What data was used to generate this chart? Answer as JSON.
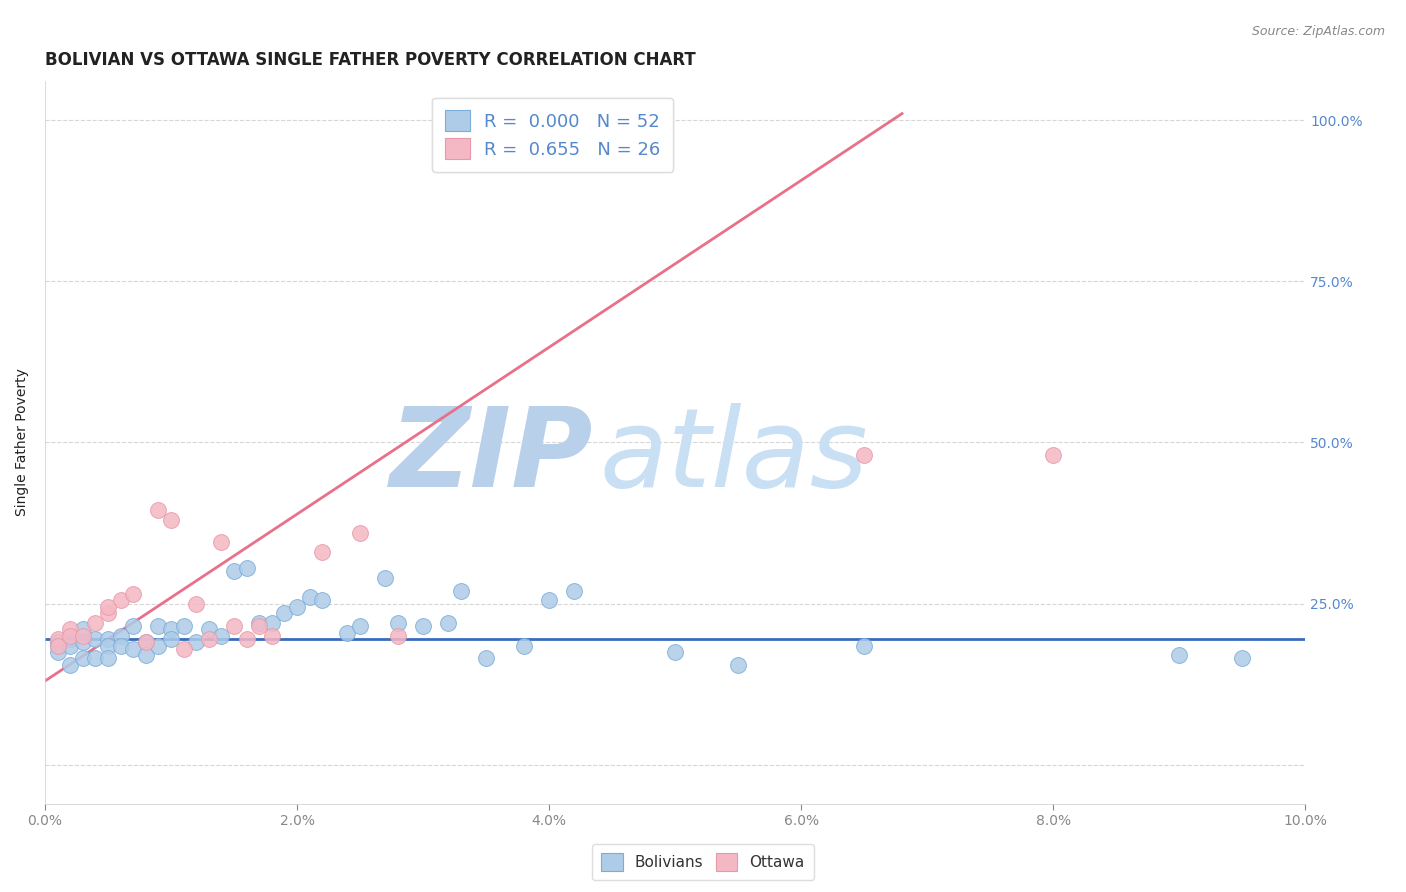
{
  "title": "BOLIVIAN VS OTTAWA SINGLE FATHER POVERTY CORRELATION CHART",
  "source": "Source: ZipAtlas.com",
  "ylabel": "Single Father Poverty",
  "legend_blue_label": "R =  0.000   N = 52",
  "legend_pink_label": "R =  0.655   N = 26",
  "bolivians_color": "#aecce8",
  "ottawa_color": "#f4b8c4",
  "blue_line_color": "#3a6bbf",
  "pink_line_color": "#e8708a",
  "blue_marker_edge": "#7aadd8",
  "pink_marker_edge": "#e898a8",
  "watermark_zip_color": "#c8dff0",
  "watermark_atlas_color": "#b8d4ee",
  "title_color": "#222222",
  "axis_label_color": "#222222",
  "tick_color": "#5588cc",
  "grid_color": "#cccccc",
  "x_lim": [
    0.0,
    0.1
  ],
  "y_lim": [
    -0.06,
    1.06
  ],
  "blue_line_y": 0.195,
  "pink_line_x0": 0.0,
  "pink_line_y0": 0.13,
  "pink_line_x1": 0.068,
  "pink_line_y1": 1.01,
  "bolivians_x": [
    0.001,
    0.001,
    0.001,
    0.002,
    0.002,
    0.002,
    0.003,
    0.003,
    0.003,
    0.004,
    0.004,
    0.005,
    0.005,
    0.005,
    0.006,
    0.006,
    0.007,
    0.007,
    0.008,
    0.008,
    0.009,
    0.009,
    0.01,
    0.01,
    0.011,
    0.012,
    0.013,
    0.014,
    0.015,
    0.016,
    0.017,
    0.018,
    0.019,
    0.02,
    0.021,
    0.022,
    0.024,
    0.025,
    0.027,
    0.028,
    0.03,
    0.032,
    0.033,
    0.035,
    0.038,
    0.04,
    0.042,
    0.05,
    0.055,
    0.065,
    0.09,
    0.095
  ],
  "bolivians_y": [
    0.19,
    0.185,
    0.175,
    0.195,
    0.185,
    0.155,
    0.21,
    0.19,
    0.165,
    0.195,
    0.165,
    0.195,
    0.185,
    0.165,
    0.2,
    0.185,
    0.215,
    0.18,
    0.19,
    0.17,
    0.215,
    0.185,
    0.21,
    0.195,
    0.215,
    0.19,
    0.21,
    0.2,
    0.3,
    0.305,
    0.22,
    0.22,
    0.235,
    0.245,
    0.26,
    0.255,
    0.205,
    0.215,
    0.29,
    0.22,
    0.215,
    0.22,
    0.27,
    0.165,
    0.185,
    0.255,
    0.27,
    0.175,
    0.155,
    0.185,
    0.17,
    0.165
  ],
  "ottawa_x": [
    0.001,
    0.001,
    0.002,
    0.002,
    0.003,
    0.004,
    0.005,
    0.005,
    0.006,
    0.007,
    0.008,
    0.009,
    0.01,
    0.011,
    0.012,
    0.013,
    0.014,
    0.015,
    0.016,
    0.017,
    0.018,
    0.022,
    0.025,
    0.028,
    0.065,
    0.08
  ],
  "ottawa_y": [
    0.195,
    0.185,
    0.21,
    0.2,
    0.2,
    0.22,
    0.235,
    0.245,
    0.255,
    0.265,
    0.19,
    0.395,
    0.38,
    0.18,
    0.25,
    0.195,
    0.345,
    0.215,
    0.195,
    0.215,
    0.2,
    0.33,
    0.36,
    0.2,
    0.48,
    0.48
  ],
  "x_ticks": [
    0.0,
    0.02,
    0.04,
    0.06,
    0.08,
    0.1
  ],
  "x_tick_labels": [
    "0.0%",
    "2.0%",
    "4.0%",
    "6.0%",
    "8.0%",
    "10.0%"
  ],
  "y_ticks": [
    0.0,
    0.25,
    0.5,
    0.75,
    1.0
  ],
  "y_tick_labels_right": [
    "",
    "25.0%",
    "50.0%",
    "75.0%",
    "100.0%"
  ]
}
